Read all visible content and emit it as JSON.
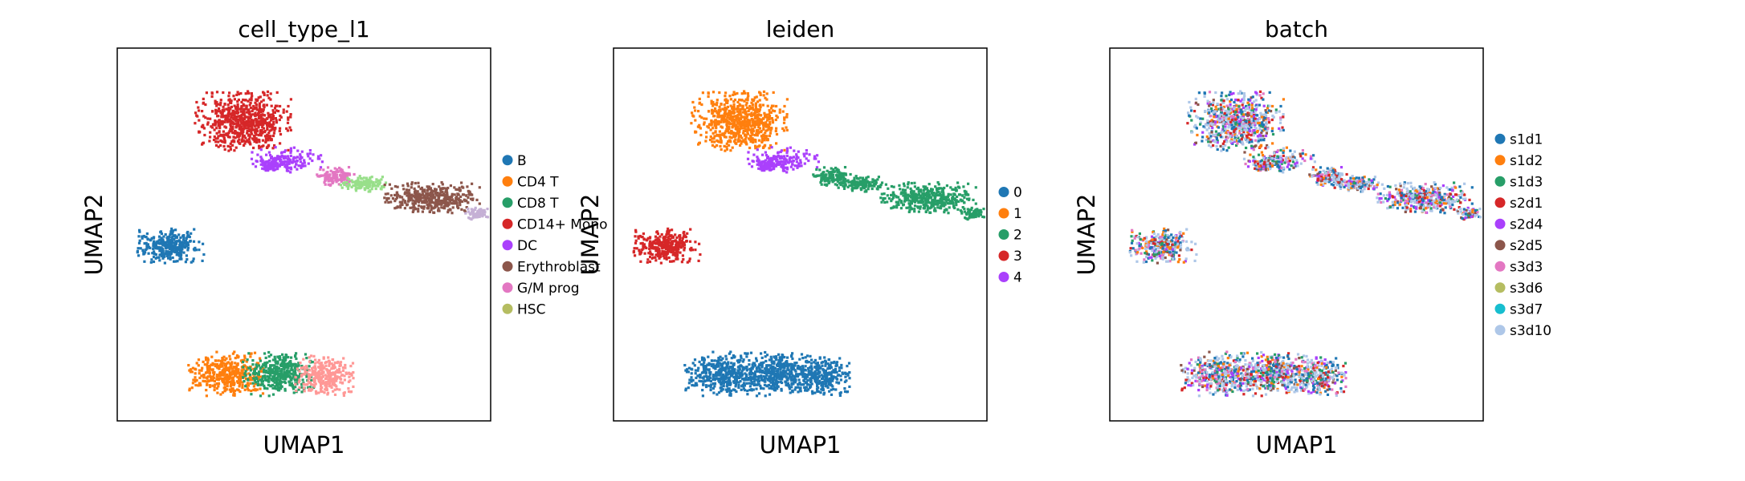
{
  "chart_data": [
    {
      "type": "scatter",
      "title": "cell_type_l1",
      "xlabel": "UMAP1",
      "ylabel": "UMAP2",
      "grid": false,
      "legend": "right",
      "xticks": [],
      "yticks": [],
      "legend_entries": [
        {
          "name": "B",
          "color": "#1f77b4"
        },
        {
          "name": "CD4 T",
          "color": "#ff7f0e"
        },
        {
          "name": "CD8 T",
          "color": "#279e68"
        },
        {
          "name": "CD14+ Mono",
          "color": "#d62728"
        },
        {
          "name": "DC",
          "color": "#aa40fc"
        },
        {
          "name": "Erythroblast",
          "color": "#8c564b"
        },
        {
          "name": "G/M prog",
          "color": "#e377c2"
        },
        {
          "name": "HSC",
          "color": "#b5bd61"
        }
      ]
    },
    {
      "type": "scatter",
      "title": "leiden",
      "xlabel": "UMAP1",
      "ylabel": "UMAP2",
      "grid": false,
      "legend": "right",
      "xticks": [],
      "yticks": [],
      "legend_entries": [
        {
          "name": "0",
          "color": "#1f77b4"
        },
        {
          "name": "1",
          "color": "#ff7f0e"
        },
        {
          "name": "2",
          "color": "#279e68"
        },
        {
          "name": "3",
          "color": "#d62728"
        },
        {
          "name": "4",
          "color": "#aa40fc"
        }
      ]
    },
    {
      "type": "scatter",
      "title": "batch",
      "xlabel": "UMAP1",
      "ylabel": "UMAP2",
      "grid": false,
      "legend": "right",
      "xticks": [],
      "yticks": [],
      "legend_entries": [
        {
          "name": "s1d1",
          "color": "#1f77b4"
        },
        {
          "name": "s1d2",
          "color": "#ff7f0e"
        },
        {
          "name": "s1d3",
          "color": "#279e68"
        },
        {
          "name": "s2d1",
          "color": "#d62728"
        },
        {
          "name": "s2d4",
          "color": "#aa40fc"
        },
        {
          "name": "s2d5",
          "color": "#8c564b"
        },
        {
          "name": "s3d3",
          "color": "#e377c2"
        },
        {
          "name": "s3d6",
          "color": "#b5bd61"
        },
        {
          "name": "s3d7",
          "color": "#17becf"
        },
        {
          "name": "s3d10",
          "color": "#aec7e8"
        }
      ]
    }
  ]
}
